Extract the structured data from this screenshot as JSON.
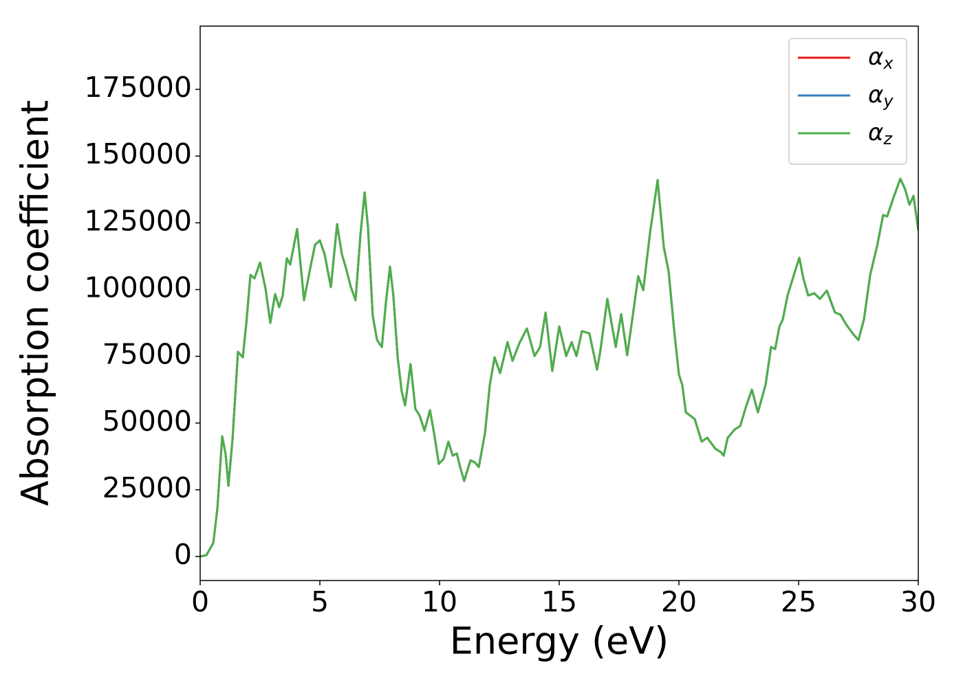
{
  "chart_data": {
    "type": "line",
    "xlabel": "Energy (eV)",
    "ylabel": "Absorption coefficient",
    "x": [
      0,
      0.26,
      0.55,
      0.72,
      0.92,
      1.06,
      1.18,
      1.35,
      1.58,
      1.78,
      1.93,
      2.1,
      2.27,
      2.5,
      2.73,
      2.93,
      3.13,
      3.3,
      3.45,
      3.62,
      3.76,
      4.05,
      4.34,
      4.6,
      4.8,
      5.0,
      5.2,
      5.46,
      5.72,
      5.92,
      6.09,
      6.29,
      6.49,
      6.7,
      6.87,
      7.01,
      7.21,
      7.39,
      7.59,
      7.76,
      7.93,
      8.07,
      8.25,
      8.42,
      8.56,
      8.79,
      8.99,
      9.17,
      9.37,
      9.6,
      9.77,
      9.97,
      10.17,
      10.37,
      10.55,
      10.72,
      10.86,
      11.03,
      11.29,
      11.47,
      11.64,
      11.9,
      12.1,
      12.3,
      12.53,
      12.84,
      13.05,
      13.33,
      13.65,
      13.97,
      14.2,
      14.43,
      14.71,
      15.0,
      15.29,
      15.52,
      15.72,
      15.95,
      16.26,
      16.58,
      16.72,
      17.01,
      17.36,
      17.59,
      17.84,
      18.07,
      18.3,
      18.51,
      18.79,
      19.11,
      19.37,
      19.57,
      19.8,
      20.0,
      20.14,
      20.29,
      20.66,
      20.95,
      21.18,
      21.52,
      21.75,
      21.87,
      22.04,
      22.33,
      22.56,
      22.82,
      23.05,
      23.3,
      23.62,
      23.85,
      24.02,
      24.2,
      24.34,
      24.54,
      24.83,
      25.03,
      25.2,
      25.4,
      25.66,
      25.89,
      26.18,
      26.52,
      26.75,
      26.98,
      27.3,
      27.5,
      27.73,
      27.99,
      28.28,
      28.53,
      28.7,
      28.94,
      29.25,
      29.45,
      29.63,
      29.8,
      30.0
    ],
    "series": [
      {
        "name": "αx",
        "color": "#e41a1c",
        "values": [
          0,
          500,
          5100,
          18000,
          45000,
          38600,
          26500,
          43700,
          76700,
          74600,
          87500,
          105500,
          104200,
          110100,
          100400,
          87500,
          98300,
          93400,
          97800,
          111700,
          109400,
          122700,
          96000,
          108100,
          116800,
          118400,
          113200,
          100900,
          124500,
          113200,
          108100,
          101100,
          96000,
          121000,
          136400,
          123500,
          90100,
          81100,
          78500,
          95200,
          108600,
          97800,
          74600,
          61800,
          56600,
          72100,
          55300,
          52800,
          47100,
          54800,
          46300,
          34700,
          36500,
          43000,
          37800,
          38600,
          33500,
          28300,
          36000,
          35300,
          33500,
          46300,
          64300,
          74600,
          68700,
          80300,
          73300,
          79800,
          85400,
          75100,
          78500,
          91400,
          69500,
          86200,
          75100,
          80300,
          75100,
          84400,
          83600,
          70000,
          77200,
          96500,
          78500,
          90800,
          75400,
          90100,
          105000,
          99800,
          121000,
          141000,
          115800,
          106800,
          84900,
          68200,
          64300,
          54000,
          51500,
          43000,
          44500,
          40400,
          39100,
          37800,
          44500,
          47600,
          48900,
          56600,
          62500,
          54000,
          64300,
          78500,
          77700,
          86200,
          88800,
          97800,
          106300,
          111900,
          104200,
          97800,
          98600,
          96500,
          99600,
          91400,
          90600,
          87000,
          83100,
          81100,
          88800,
          105500,
          116300,
          127900,
          127400,
          133800,
          141500,
          137600,
          131800,
          135100,
          122200
        ]
      },
      {
        "name": "αy",
        "color": "#377eb8",
        "values": [
          0,
          500,
          5100,
          18000,
          45000,
          38600,
          26500,
          43700,
          76700,
          74600,
          87500,
          105500,
          104200,
          110100,
          100400,
          87500,
          98300,
          93400,
          97800,
          111700,
          109400,
          122700,
          96000,
          108100,
          116800,
          118400,
          113200,
          100900,
          124500,
          113200,
          108100,
          101100,
          96000,
          121000,
          136400,
          123500,
          90100,
          81100,
          78500,
          95200,
          108600,
          97800,
          74600,
          61800,
          56600,
          72100,
          55300,
          52800,
          47100,
          54800,
          46300,
          34700,
          36500,
          43000,
          37800,
          38600,
          33500,
          28300,
          36000,
          35300,
          33500,
          46300,
          64300,
          74600,
          68700,
          80300,
          73300,
          79800,
          85400,
          75100,
          78500,
          91400,
          69500,
          86200,
          75100,
          80300,
          75100,
          84400,
          83600,
          70000,
          77200,
          96500,
          78500,
          90800,
          75400,
          90100,
          105000,
          99800,
          121000,
          141000,
          115800,
          106800,
          84900,
          68200,
          64300,
          54000,
          51500,
          43000,
          44500,
          40400,
          39100,
          37800,
          44500,
          47600,
          48900,
          56600,
          62500,
          54000,
          64300,
          78500,
          77700,
          86200,
          88800,
          97800,
          106300,
          111900,
          104200,
          97800,
          98600,
          96500,
          99600,
          91400,
          90600,
          87000,
          83100,
          81100,
          88800,
          105500,
          116300,
          127900,
          127400,
          133800,
          141500,
          137600,
          131800,
          135100,
          122200
        ]
      },
      {
        "name": "αz",
        "color": "#4daf4a",
        "values": [
          0,
          500,
          5100,
          18000,
          45000,
          38600,
          26500,
          43700,
          76700,
          74600,
          87500,
          105500,
          104200,
          110100,
          100400,
          87500,
          98300,
          93400,
          97800,
          111700,
          109400,
          122700,
          96000,
          108100,
          116800,
          118400,
          113200,
          100900,
          124500,
          113200,
          108100,
          101100,
          96000,
          121000,
          136400,
          123500,
          90100,
          81100,
          78500,
          95200,
          108600,
          97800,
          74600,
          61800,
          56600,
          72100,
          55300,
          52800,
          47100,
          54800,
          46300,
          34700,
          36500,
          43000,
          37800,
          38600,
          33500,
          28300,
          36000,
          35300,
          33500,
          46300,
          64300,
          74600,
          68700,
          80300,
          73300,
          79800,
          85400,
          75100,
          78500,
          91400,
          69500,
          86200,
          75100,
          80300,
          75100,
          84400,
          83600,
          70000,
          77200,
          96500,
          78500,
          90800,
          75400,
          90100,
          105000,
          99800,
          121000,
          141000,
          115800,
          106800,
          84900,
          68200,
          64300,
          54000,
          51500,
          43000,
          44500,
          40400,
          39100,
          37800,
          44500,
          47600,
          48900,
          56600,
          62500,
          54000,
          64300,
          78500,
          77700,
          86200,
          88800,
          97800,
          106300,
          111900,
          104200,
          97800,
          98600,
          96500,
          99600,
          91400,
          90600,
          87000,
          83100,
          81100,
          88800,
          105500,
          116300,
          127900,
          127400,
          133800,
          141500,
          137600,
          131800,
          135100,
          122200
        ]
      }
    ],
    "xlim": [
      0,
      30
    ],
    "xticks": [
      0,
      5,
      10,
      15,
      20,
      25,
      30
    ],
    "ylim": [
      -9000,
      198700
    ],
    "yticks": [
      0,
      25000,
      50000,
      75000,
      100000,
      125000,
      150000,
      175000
    ],
    "legend": "upper right",
    "grid": false
  }
}
